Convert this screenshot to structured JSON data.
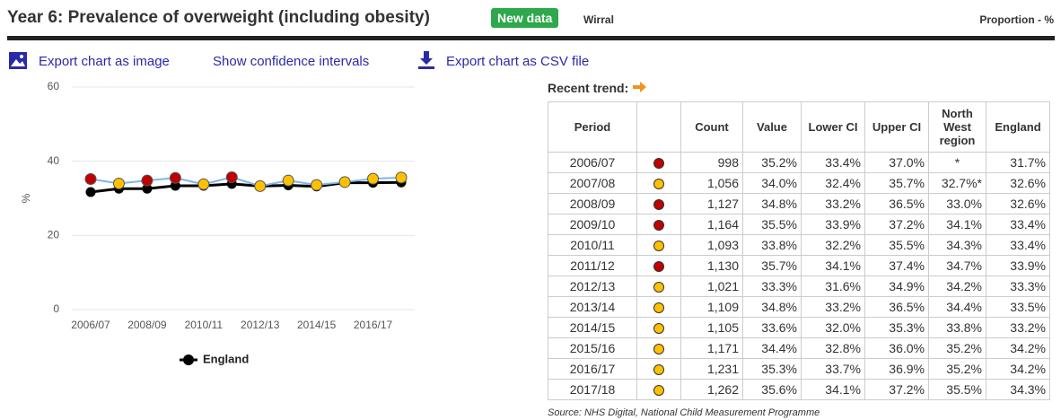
{
  "header": {
    "title": "Year 6: Prevalence of overweight (including obesity)",
    "badge": "New data",
    "area": "Wirral",
    "unit": "Proportion - %"
  },
  "toolbar": {
    "export_image": "Export chart as image",
    "confidence": "Show confidence intervals",
    "export_csv": "Export chart as CSV file"
  },
  "chart_data": {
    "type": "line",
    "y_label": "%",
    "categories": [
      "2006/07",
      null,
      "2008/09",
      null,
      "2010/11",
      null,
      "2012/13",
      null,
      "2014/15",
      null,
      "2016/17",
      null
    ],
    "series": [
      {
        "color": "#7cb5ec",
        "values": [
          35.2,
          34.0,
          34.8,
          35.5,
          33.8,
          35.7,
          33.3,
          34.8,
          33.6,
          34.4,
          35.3,
          35.6
        ],
        "point_colors": [
          "#c00000",
          "#ffc000",
          "#c00000",
          "#c00000",
          "#ffc000",
          "#c00000",
          "#ffc000",
          "#ffc000",
          "#ffc000",
          "#ffc000",
          "#ffc000",
          "#ffc000"
        ]
      },
      {
        "name": "England",
        "color": "#000000",
        "values": [
          31.7,
          32.6,
          32.6,
          33.4,
          33.4,
          33.9,
          33.3,
          33.5,
          33.2,
          34.2,
          34.2,
          34.3
        ]
      }
    ],
    "ylim": [
      0,
      60
    ],
    "yticks": [
      0,
      20,
      40,
      60
    ],
    "grid": true
  },
  "trend_label": "Recent trend:",
  "table": {
    "headers": [
      "Period",
      "",
      "Count",
      "Value",
      "Lower CI",
      "Upper CI",
      "North West region",
      "England"
    ],
    "rows": [
      [
        "2006/07",
        "998",
        "35.2%",
        "33.4%",
        "37.0%",
        "*",
        "31.7%"
      ],
      [
        "2007/08",
        "1,056",
        "34.0%",
        "32.4%",
        "35.7%",
        "32.7%*",
        "32.6%"
      ],
      [
        "2008/09",
        "1,127",
        "34.8%",
        "33.2%",
        "36.5%",
        "33.0%",
        "32.6%"
      ],
      [
        "2009/10",
        "1,164",
        "35.5%",
        "33.9%",
        "37.2%",
        "34.1%",
        "33.4%"
      ],
      [
        "2010/11",
        "1,093",
        "33.8%",
        "32.2%",
        "35.5%",
        "34.3%",
        "33.4%"
      ],
      [
        "2011/12",
        "1,130",
        "35.7%",
        "34.1%",
        "37.4%",
        "34.7%",
        "33.9%"
      ],
      [
        "2012/13",
        "1,021",
        "33.3%",
        "31.6%",
        "34.9%",
        "34.2%",
        "33.3%"
      ],
      [
        "2013/14",
        "1,109",
        "34.8%",
        "33.2%",
        "36.5%",
        "34.4%",
        "33.5%"
      ],
      [
        "2014/15",
        "1,105",
        "33.6%",
        "32.0%",
        "35.3%",
        "33.8%",
        "33.2%"
      ],
      [
        "2015/16",
        "1,171",
        "34.4%",
        "32.8%",
        "36.0%",
        "35.2%",
        "34.2%"
      ],
      [
        "2016/17",
        "1,231",
        "35.3%",
        "33.7%",
        "36.9%",
        "35.2%",
        "34.2%"
      ],
      [
        "2017/18",
        "1,262",
        "35.6%",
        "34.1%",
        "37.2%",
        "35.5%",
        "34.3%"
      ]
    ],
    "marker_colors": [
      "#c00000",
      "#ffc000",
      "#c00000",
      "#c00000",
      "#ffc000",
      "#c00000",
      "#ffc000",
      "#ffc000",
      "#ffc000",
      "#ffc000",
      "#ffc000",
      "#ffc000"
    ]
  },
  "source": "Source: NHS Digital, National Child Measurement Programme"
}
